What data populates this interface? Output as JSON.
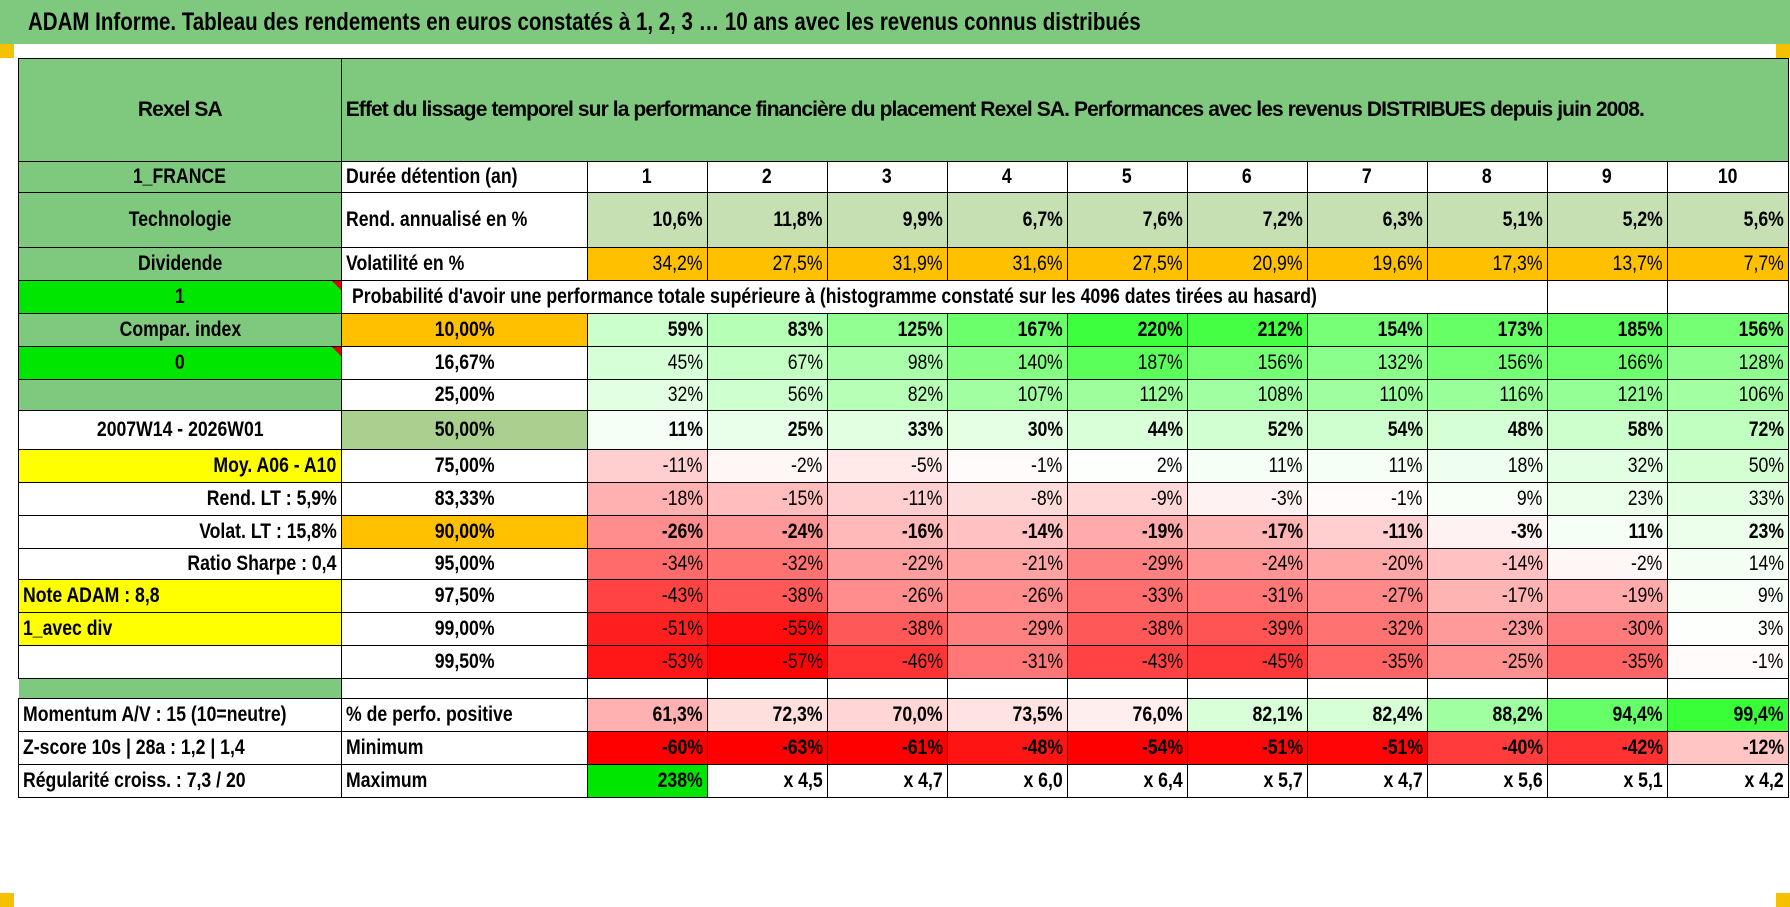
{
  "title": "ADAM Informe. Tableau des rendements en euros constatés à 1, 2, 3 … 10 ans avec les revenus connus distribués",
  "side": {
    "name": "Rexel SA",
    "country": "1_FRANCE",
    "sector": "Technologie",
    "type": "Dividende",
    "flag1": "1",
    "compar_label": "Compar. index",
    "flag2": "0",
    "period": "2007W14 - 2026W01",
    "moy": "Moy. A06 - A10",
    "rend_lt": "Rend. LT :   5,9%",
    "volat_lt": "Volat. LT :   15,8%",
    "sharpe": "Ratio Sharpe :   0,4",
    "note": "Note ADAM : 8,8",
    "mode": "1_avec div",
    "momentum": "Momentum A/V : 15 (10=neutre)",
    "zscore": "Z-score 10s | 28a : 1,2 | 1,4",
    "regularite": "Régularité croiss. : 7,3 / 20"
  },
  "header_text": "Effet du lissage temporel sur la performance financière du placement Rexel SA. Performances avec les revenus DISTRIBUES depuis juin 2008.",
  "duree_label": "Durée détention (an)",
  "years": [
    "1",
    "2",
    "3",
    "4",
    "5",
    "6",
    "7",
    "8",
    "9",
    "10"
  ],
  "rend_label": "Rend. annualisé en %",
  "rend": [
    "10,6%",
    "11,8%",
    "9,9%",
    "6,7%",
    "7,6%",
    "7,2%",
    "6,3%",
    "5,1%",
    "5,2%",
    "5,6%"
  ],
  "vol_label": "Volatilité en %",
  "vol": [
    "34,2%",
    "27,5%",
    "31,9%",
    "31,6%",
    "27,5%",
    "20,9%",
    "19,6%",
    "17,3%",
    "13,7%",
    "7,7%"
  ],
  "prob_label": "Probabilité d'avoir une performance totale supérieure à (histogramme constaté sur les 4096 dates tirées au hasard)",
  "quantile_rows": [
    {
      "q": "10,00%",
      "v": [
        "59%",
        "83%",
        "125%",
        "167%",
        "220%",
        "212%",
        "154%",
        "173%",
        "185%",
        "156%"
      ]
    },
    {
      "q": "16,67%",
      "v": [
        "45%",
        "67%",
        "98%",
        "140%",
        "187%",
        "156%",
        "132%",
        "156%",
        "166%",
        "128%"
      ]
    },
    {
      "q": "25,00%",
      "v": [
        "32%",
        "56%",
        "82%",
        "107%",
        "112%",
        "108%",
        "110%",
        "116%",
        "121%",
        "106%"
      ]
    },
    {
      "q": "50,00%",
      "v": [
        "11%",
        "25%",
        "33%",
        "30%",
        "44%",
        "52%",
        "54%",
        "48%",
        "58%",
        "72%"
      ]
    },
    {
      "q": "75,00%",
      "v": [
        "-11%",
        "-2%",
        "-5%",
        "-1%",
        "2%",
        "11%",
        "11%",
        "18%",
        "32%",
        "50%"
      ]
    },
    {
      "q": "83,33%",
      "v": [
        "-18%",
        "-15%",
        "-11%",
        "-8%",
        "-9%",
        "-3%",
        "-1%",
        "9%",
        "23%",
        "33%"
      ]
    },
    {
      "q": "90,00%",
      "v": [
        "-26%",
        "-24%",
        "-16%",
        "-14%",
        "-19%",
        "-17%",
        "-11%",
        "-3%",
        "11%",
        "23%"
      ]
    },
    {
      "q": "95,00%",
      "v": [
        "-34%",
        "-32%",
        "-22%",
        "-21%",
        "-29%",
        "-24%",
        "-20%",
        "-14%",
        "-2%",
        "14%"
      ]
    },
    {
      "q": "97,50%",
      "v": [
        "-43%",
        "-38%",
        "-26%",
        "-26%",
        "-33%",
        "-31%",
        "-27%",
        "-17%",
        "-19%",
        "9%"
      ]
    },
    {
      "q": "99,00%",
      "v": [
        "-51%",
        "-55%",
        "-38%",
        "-29%",
        "-38%",
        "-39%",
        "-32%",
        "-23%",
        "-30%",
        "3%"
      ]
    },
    {
      "q": "99,50%",
      "v": [
        "-53%",
        "-57%",
        "-46%",
        "-31%",
        "-43%",
        "-45%",
        "-35%",
        "-25%",
        "-35%",
        "-1%"
      ]
    }
  ],
  "pos_label": "% de perfo. positive",
  "pos": [
    "61,3%",
    "72,3%",
    "70,0%",
    "73,5%",
    "76,0%",
    "82,1%",
    "82,4%",
    "88,2%",
    "94,4%",
    "99,4%"
  ],
  "min_label": "Minimum",
  "min": [
    "-60%",
    "-63%",
    "-61%",
    "-48%",
    "-54%",
    "-51%",
    "-51%",
    "-40%",
    "-42%",
    "-12%"
  ],
  "max_label": "Maximum",
  "max": [
    "238%",
    "x 4,5",
    "x 4,7",
    "x 6,0",
    "x 6,4",
    "x 5,7",
    "x 4,7",
    "x 5,6",
    "x 5,1",
    "x 4,2"
  ],
  "colors": {
    "green_header": "#7fc97f",
    "rend_fill": "#c6e0b4",
    "orange": "#ffc000",
    "yellow": "#ffff00",
    "bright_green": "#00e600",
    "median_fill": "#a9d08e"
  }
}
